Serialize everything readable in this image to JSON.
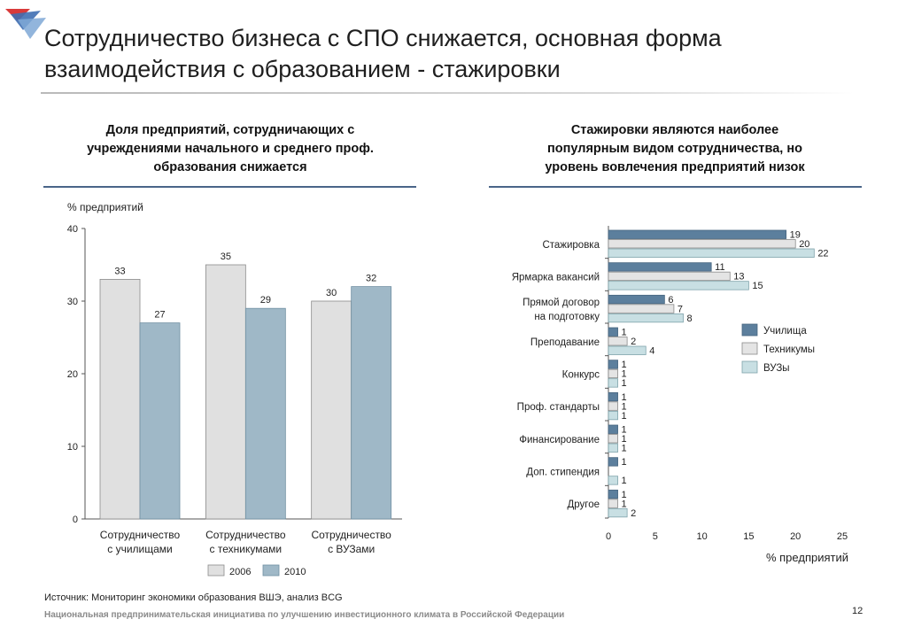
{
  "header": {
    "title": "Сотрудничество бизнеса с СПО снижается, основная форма взаимодействия с образованием - стажировки",
    "title_lines": [
      "Сотрудничество бизнеса с СПО снижается, основная форма",
      "взаимодействия с образованием - стажировки"
    ]
  },
  "left_panel": {
    "heading": "Доля предприятий, сотрудничающих с учреждениями начального и среднего проф. образования снижается",
    "heading_lines": [
      "Доля предприятий, сотрудничающих с",
      "учреждениями начального и среднего проф.",
      "образования снижается"
    ]
  },
  "right_panel": {
    "heading": "Стажировки являются наиболее популярным видом сотрудничества, но уровень вовлечения предприятий низок",
    "heading_lines": [
      "Стажировки являются наиболее",
      "популярным видом сотрудничества, но",
      "уровень вовлечения предприятий низок"
    ]
  },
  "colors": {
    "series_2006": "#e0e0e0",
    "series_2010": "#9fb8c7",
    "uchilishcha": "#5c7f9d",
    "tekhnikumy": "#e4e4e4",
    "vuzy": "#c8dfe3",
    "rule": "#4a6589"
  },
  "chart_data": [
    {
      "type": "bar",
      "ylabel": "% предприятий",
      "ylim": [
        0,
        40
      ],
      "yticks": [
        0,
        10,
        20,
        30,
        40
      ],
      "categories": [
        "Сотрудничество с училищами",
        "Сотрудничество с техникумами",
        "Сотрудничество с ВУЗами"
      ],
      "category_lines": [
        [
          "Сотрудничество",
          "с училищами"
        ],
        [
          "Сотрудничество",
          "с техникумами"
        ],
        [
          "Сотрудничество",
          "с ВУЗами"
        ]
      ],
      "series": [
        {
          "name": "2006",
          "values": [
            33,
            35,
            30
          ]
        },
        {
          "name": "2010",
          "values": [
            27,
            29,
            32
          ]
        }
      ],
      "grid": false,
      "legend": "bottom"
    },
    {
      "type": "bar",
      "orientation": "horizontal",
      "xlabel": "% предприятий",
      "xlim": [
        0,
        25
      ],
      "xticks": [
        0,
        5,
        10,
        15,
        20,
        25
      ],
      "categories": [
        "Стажировка",
        "Ярмарка вакансий",
        "Прямой договор на подготовку",
        "Преподавание",
        "Конкурс",
        "Проф. стандарты",
        "Финансирование",
        "Доп. стипендия",
        "Другое"
      ],
      "category_lines": [
        [
          "Стажировка"
        ],
        [
          "Ярмарка вакансий"
        ],
        [
          "Прямой договор",
          "на подготовку"
        ],
        [
          "Преподавание"
        ],
        [
          "Конкурс"
        ],
        [
          "Проф. стандарты"
        ],
        [
          "Финансирование"
        ],
        [
          "Доп. стипендия"
        ],
        [
          "Другое"
        ]
      ],
      "series": [
        {
          "name": "Училища",
          "values": [
            19,
            11,
            6,
            1,
            1,
            1,
            1,
            1,
            1
          ]
        },
        {
          "name": "Техникумы",
          "values": [
            20,
            13,
            7,
            2,
            1,
            1,
            1,
            null,
            1
          ]
        },
        {
          "name": "ВУЗы",
          "values": [
            22,
            15,
            8,
            4,
            1,
            1,
            1,
            1,
            2
          ]
        }
      ],
      "grid": false,
      "legend": "right"
    }
  ],
  "footer": {
    "source": "Источник: Мониторинг экономики образования ВШЭ, анализ BCG",
    "org": "Национальная предпринимательская инициатива по улучшению инвестиционного климата в Российской Федерации",
    "page": "12"
  },
  "logo": {
    "icon": "triangle-logo-icon"
  }
}
